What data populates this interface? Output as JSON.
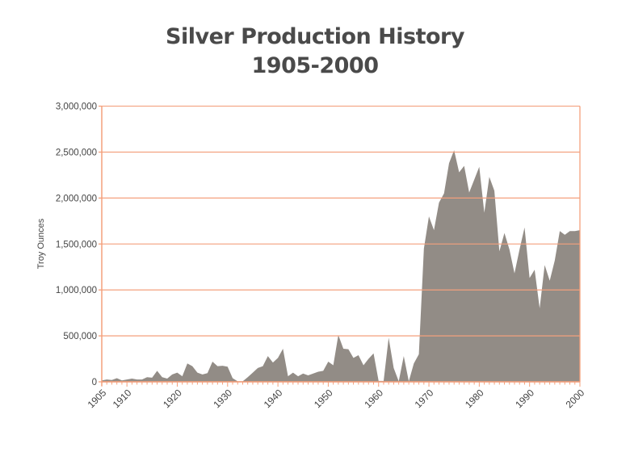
{
  "chart_data": {
    "type": "area",
    "title": "Silver Production History",
    "subtitle": "1905-2000",
    "xlabel": "",
    "ylabel": "Troy Ounces",
    "xlim": [
      1905,
      2000
    ],
    "ylim": [
      0,
      3000000
    ],
    "x_ticks": [
      1905,
      1910,
      1920,
      1930,
      1940,
      1950,
      1960,
      1970,
      1980,
      1990,
      2000
    ],
    "y_ticks": [
      0,
      500000,
      1000000,
      1500000,
      2000000,
      2500000,
      3000000
    ],
    "y_tick_labels": [
      "0",
      "500,000",
      "1,000,000",
      "1,500,000",
      "2,000,000",
      "2,500,000",
      "3,000,000"
    ],
    "grid": true,
    "legend": null,
    "fill_color": "#928c86",
    "grid_color": "#f4a07c",
    "x": [
      1905,
      1906,
      1907,
      1908,
      1909,
      1910,
      1911,
      1912,
      1913,
      1914,
      1915,
      1916,
      1917,
      1918,
      1919,
      1920,
      1921,
      1922,
      1923,
      1924,
      1925,
      1926,
      1927,
      1928,
      1929,
      1930,
      1931,
      1932,
      1933,
      1934,
      1935,
      1936,
      1937,
      1938,
      1939,
      1940,
      1941,
      1942,
      1943,
      1944,
      1945,
      1946,
      1947,
      1948,
      1949,
      1950,
      1951,
      1952,
      1953,
      1954,
      1955,
      1956,
      1957,
      1958,
      1959,
      1960,
      1961,
      1962,
      1963,
      1964,
      1965,
      1966,
      1967,
      1968,
      1969,
      1970,
      1971,
      1972,
      1973,
      1974,
      1975,
      1976,
      1977,
      1978,
      1979,
      1980,
      1981,
      1982,
      1983,
      1984,
      1985,
      1986,
      1987,
      1988,
      1989,
      1990,
      1991,
      1992,
      1993,
      1994,
      1995,
      1996,
      1997,
      1998,
      1999,
      2000
    ],
    "values": [
      15000,
      25000,
      20000,
      40000,
      15000,
      25000,
      35000,
      25000,
      25000,
      50000,
      45000,
      120000,
      50000,
      35000,
      80000,
      100000,
      60000,
      200000,
      170000,
      100000,
      80000,
      95000,
      220000,
      170000,
      175000,
      165000,
      40000,
      5000,
      5000,
      50000,
      100000,
      150000,
      170000,
      280000,
      210000,
      260000,
      360000,
      60000,
      100000,
      60000,
      90000,
      70000,
      90000,
      110000,
      120000,
      220000,
      180000,
      510000,
      360000,
      355000,
      260000,
      290000,
      180000,
      250000,
      310000,
      10000,
      10000,
      480000,
      150000,
      5000,
      280000,
      5000,
      200000,
      300000,
      1450000,
      1800000,
      1650000,
      1950000,
      2050000,
      2380000,
      2520000,
      2280000,
      2350000,
      2060000,
      2200000,
      2340000,
      1840000,
      2230000,
      2080000,
      1420000,
      1620000,
      1440000,
      1180000,
      1440000,
      1680000,
      1130000,
      1220000,
      800000,
      1270000,
      1100000,
      1320000,
      1640000,
      1600000,
      1640000,
      1640000,
      1650000
    ]
  }
}
